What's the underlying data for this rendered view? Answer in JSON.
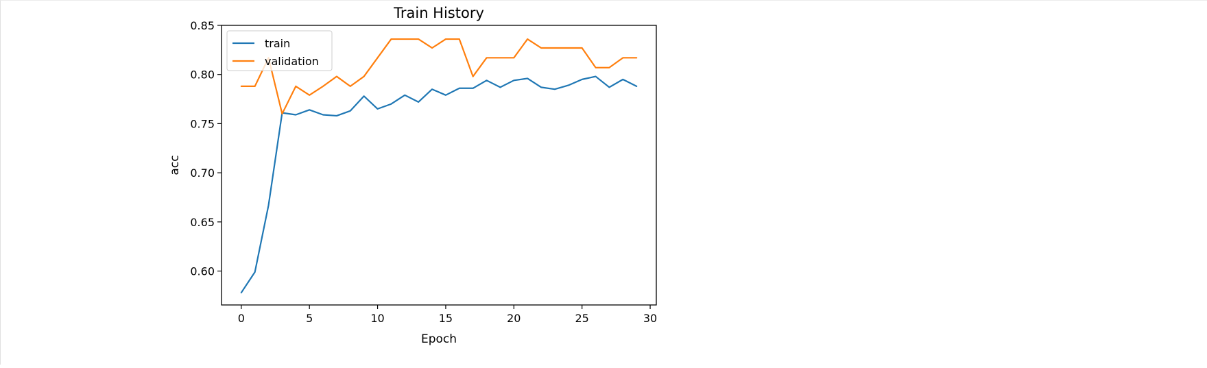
{
  "chart_data": {
    "type": "line",
    "title": "Train History",
    "xlabel": "Epoch",
    "ylabel": "acc",
    "xlim": [
      -1.45,
      30.45
    ],
    "ylim": [
      0.5655,
      0.85
    ],
    "xticks": [
      0,
      5,
      10,
      15,
      20,
      25,
      30
    ],
    "yticks": [
      0.6,
      0.65,
      0.7,
      0.75,
      0.8,
      0.85
    ],
    "grid": false,
    "legend_position": "top-left",
    "x": [
      0,
      1,
      2,
      3,
      4,
      5,
      6,
      7,
      8,
      9,
      10,
      11,
      12,
      13,
      14,
      15,
      16,
      17,
      18,
      19,
      20,
      21,
      22,
      23,
      24,
      25,
      26,
      27,
      28,
      29
    ],
    "series": [
      {
        "name": "train",
        "color": "#1f77b4",
        "values": [
          0.578,
          0.599,
          0.667,
          0.761,
          0.759,
          0.764,
          0.759,
          0.758,
          0.763,
          0.778,
          0.765,
          0.77,
          0.779,
          0.772,
          0.785,
          0.779,
          0.786,
          0.786,
          0.794,
          0.787,
          0.794,
          0.796,
          0.787,
          0.785,
          0.789,
          0.795,
          0.798,
          0.787,
          0.795,
          0.788
        ]
      },
      {
        "name": "validation",
        "color": "#ff7f0e",
        "values": [
          0.788,
          0.788,
          0.817,
          0.76,
          0.788,
          0.779,
          0.788,
          0.798,
          0.788,
          0.798,
          0.817,
          0.836,
          0.836,
          0.836,
          0.827,
          0.836,
          0.836,
          0.798,
          0.817,
          0.817,
          0.817,
          0.836,
          0.827,
          0.827,
          0.827,
          0.827,
          0.807,
          0.807,
          0.817,
          0.817
        ]
      }
    ]
  }
}
